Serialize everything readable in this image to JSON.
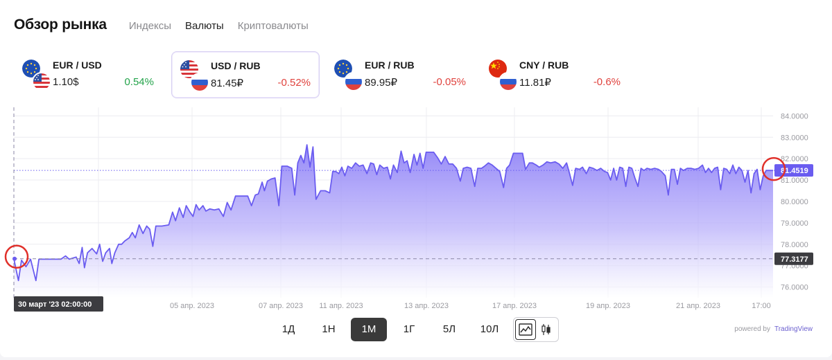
{
  "header": {
    "title": "Обзор рынка",
    "tabs": [
      {
        "label": "Индексы",
        "active": false
      },
      {
        "label": "Валюты",
        "active": true
      },
      {
        "label": "Криптовалюты",
        "active": false
      }
    ]
  },
  "tickers": [
    {
      "pair": "EUR / USD",
      "price": "1.10$",
      "change": "0.54%",
      "direction": "up",
      "flag1": "eu-flag-icon",
      "flag2": "us-flag-icon",
      "selected": false
    },
    {
      "pair": "USD / RUB",
      "price": "81.45₽",
      "change": "-0.52%",
      "direction": "down",
      "flag1": "us-flag-icon",
      "flag2": "ru-flag-icon",
      "selected": true
    },
    {
      "pair": "EUR / RUB",
      "price": "89.95₽",
      "change": "-0.05%",
      "direction": "down",
      "flag1": "eu-flag-icon",
      "flag2": "ru-flag-icon",
      "selected": false
    },
    {
      "pair": "CNY / RUB",
      "price": "11.81₽",
      "change": "-0.6%",
      "direction": "down",
      "flag1": "cn-flag-icon",
      "flag2": "ru-flag-icon",
      "selected": false
    }
  ],
  "periods": [
    {
      "label": "1Д",
      "active": false
    },
    {
      "label": "1Н",
      "active": false
    },
    {
      "label": "1М",
      "active": true
    },
    {
      "label": "1Г",
      "active": false
    },
    {
      "label": "5Л",
      "active": false
    },
    {
      "label": "10Л",
      "active": false
    }
  ],
  "view_toggle": {
    "options": [
      "area-chart-icon",
      "candlestick-icon"
    ],
    "active": "area-chart-icon"
  },
  "powered": {
    "prefix": "powered by",
    "brand": "TradingView"
  },
  "colors": {
    "accent": "#6a5cf0",
    "up": "#23a34a",
    "down": "#e0423d",
    "crosshair_label_bg": "#3c3c40",
    "highlight_circle": "#e0302a"
  },
  "chart_data": {
    "type": "area",
    "title": "",
    "series_name": "",
    "ylim": [
      75.5,
      84.4
    ],
    "yticks": [
      "84.0000",
      "83.0000",
      "82.0000",
      "81.0000",
      "80.0000",
      "79.0000",
      "78.0000",
      "77.0000",
      "76.0000"
    ],
    "xtick_labels": [
      "2023",
      "05 апр. 2023",
      "07 апр. 2023",
      "11 апр. 2023",
      "13 апр. 2023",
      "17 апр. 2023",
      "19 апр. 2023",
      "21 апр. 2023",
      "17:00"
    ],
    "last_value_label": "81.4519",
    "crosshair_value_label": "77.3177",
    "crosshair_time_label": "30 март '23   02:00:00",
    "points": [
      [
        0,
        77.32
      ],
      [
        0.3,
        76.8
      ],
      [
        0.6,
        76.3
      ],
      [
        1.0,
        77.25
      ],
      [
        1.6,
        76.95
      ],
      [
        2.2,
        77.3
      ],
      [
        2.9,
        76.3
      ],
      [
        3.3,
        77.3
      ],
      [
        5.0,
        77.3
      ],
      [
        6.2,
        77.3
      ],
      [
        6.8,
        77.45
      ],
      [
        7.3,
        77.3
      ],
      [
        8.2,
        77.4
      ],
      [
        8.6,
        77.1
      ],
      [
        9.0,
        77.85
      ],
      [
        9.3,
        76.9
      ],
      [
        9.7,
        77.6
      ],
      [
        10.3,
        77.8
      ],
      [
        10.9,
        77.55
      ],
      [
        11.3,
        78.0
      ],
      [
        11.7,
        77.2
      ],
      [
        12.1,
        77.6
      ],
      [
        12.6,
        77.8
      ],
      [
        12.9,
        77.1
      ],
      [
        13.3,
        77.6
      ],
      [
        13.8,
        78.0
      ],
      [
        14.2,
        78.0
      ],
      [
        14.6,
        78.15
      ],
      [
        15.2,
        78.3
      ],
      [
        15.6,
        78.55
      ],
      [
        16.0,
        78.3
      ],
      [
        16.5,
        78.9
      ],
      [
        17.0,
        78.5
      ],
      [
        17.5,
        78.85
      ],
      [
        17.9,
        78.7
      ],
      [
        18.3,
        77.9
      ],
      [
        18.7,
        78.85
      ],
      [
        19.5,
        78.85
      ],
      [
        20.4,
        78.9
      ],
      [
        20.9,
        79.5
      ],
      [
        21.3,
        79.1
      ],
      [
        21.8,
        79.7
      ],
      [
        22.3,
        79.25
      ],
      [
        22.7,
        79.8
      ],
      [
        23.2,
        79.5
      ],
      [
        23.6,
        79.3
      ],
      [
        24.0,
        79.85
      ],
      [
        24.4,
        79.6
      ],
      [
        24.9,
        79.8
      ],
      [
        25.3,
        79.55
      ],
      [
        25.8,
        79.65
      ],
      [
        26.4,
        79.6
      ],
      [
        27.0,
        79.65
      ],
      [
        27.6,
        79.3
      ],
      [
        28.1,
        79.95
      ],
      [
        28.6,
        79.6
      ],
      [
        29.2,
        80.25
      ],
      [
        30.0,
        80.25
      ],
      [
        30.8,
        80.25
      ],
      [
        31.3,
        79.8
      ],
      [
        31.8,
        80.3
      ],
      [
        32.2,
        80.35
      ],
      [
        32.7,
        80.9
      ],
      [
        33.0,
        80.5
      ],
      [
        33.4,
        80.95
      ],
      [
        33.9,
        81.05
      ],
      [
        34.4,
        81.1
      ],
      [
        34.9,
        79.8
      ],
      [
        35.3,
        81.65
      ],
      [
        36.0,
        81.65
      ],
      [
        36.6,
        81.55
      ],
      [
        37.0,
        80.3
      ],
      [
        37.4,
        81.8
      ],
      [
        37.8,
        82.15
      ],
      [
        38.2,
        81.8
      ],
      [
        38.6,
        82.65
      ],
      [
        39.0,
        81.6
      ],
      [
        39.4,
        82.55
      ],
      [
        39.8,
        80.1
      ],
      [
        40.4,
        80.5
      ],
      [
        41.0,
        80.5
      ],
      [
        41.6,
        80.4
      ],
      [
        42.0,
        81.4
      ],
      [
        42.4,
        81.4
      ],
      [
        42.8,
        81.3
      ],
      [
        43.2,
        81.6
      ],
      [
        43.6,
        81.2
      ],
      [
        44.0,
        81.65
      ],
      [
        44.5,
        81.55
      ],
      [
        45.0,
        81.8
      ],
      [
        45.5,
        81.65
      ],
      [
        46.0,
        81.7
      ],
      [
        46.5,
        81.3
      ],
      [
        47.0,
        81.8
      ],
      [
        47.4,
        81.75
      ],
      [
        47.8,
        81.25
      ],
      [
        48.2,
        81.7
      ],
      [
        48.7,
        81.55
      ],
      [
        49.2,
        81.6
      ],
      [
        49.6,
        81.05
      ],
      [
        50.0,
        81.7
      ],
      [
        50.5,
        81.35
      ],
      [
        51.0,
        82.35
      ],
      [
        51.4,
        81.8
      ],
      [
        51.8,
        81.9
      ],
      [
        52.2,
        81.35
      ],
      [
        52.7,
        82.2
      ],
      [
        53.1,
        81.7
      ],
      [
        53.5,
        82.25
      ],
      [
        53.9,
        81.55
      ],
      [
        54.3,
        82.3
      ],
      [
        54.8,
        82.3
      ],
      [
        55.3,
        82.3
      ],
      [
        55.8,
        82.05
      ],
      [
        56.3,
        81.75
      ],
      [
        56.8,
        82.1
      ],
      [
        57.3,
        81.75
      ],
      [
        57.8,
        81.75
      ],
      [
        58.3,
        81.55
      ],
      [
        58.8,
        80.95
      ],
      [
        59.2,
        81.55
      ],
      [
        59.7,
        81.6
      ],
      [
        60.2,
        81.55
      ],
      [
        60.7,
        80.7
      ],
      [
        61.1,
        81.55
      ],
      [
        61.6,
        81.55
      ],
      [
        62.0,
        81.65
      ],
      [
        62.5,
        81.8
      ],
      [
        63.0,
        81.7
      ],
      [
        63.5,
        81.55
      ],
      [
        64.0,
        81.4
      ],
      [
        64.5,
        80.65
      ],
      [
        64.9,
        81.55
      ],
      [
        65.3,
        81.7
      ],
      [
        65.8,
        82.25
      ],
      [
        66.4,
        82.25
      ],
      [
        67.0,
        82.25
      ],
      [
        67.4,
        81.5
      ],
      [
        67.9,
        81.8
      ],
      [
        68.3,
        81.8
      ],
      [
        68.8,
        81.7
      ],
      [
        69.2,
        81.6
      ],
      [
        69.7,
        81.7
      ],
      [
        70.2,
        81.85
      ],
      [
        70.7,
        81.8
      ],
      [
        71.3,
        81.85
      ],
      [
        71.8,
        81.75
      ],
      [
        72.3,
        81.55
      ],
      [
        72.8,
        81.8
      ],
      [
        73.2,
        81.3
      ],
      [
        73.6,
        80.75
      ],
      [
        74.0,
        81.55
      ],
      [
        74.5,
        81.5
      ],
      [
        74.9,
        81.6
      ],
      [
        75.4,
        81.3
      ],
      [
        75.8,
        81.6
      ],
      [
        76.3,
        81.55
      ],
      [
        76.8,
        81.45
      ],
      [
        77.3,
        81.55
      ],
      [
        77.8,
        81.4
      ],
      [
        78.2,
        81.35
      ],
      [
        78.6,
        81.0
      ],
      [
        79.0,
        81.55
      ],
      [
        79.4,
        81.0
      ],
      [
        79.8,
        81.6
      ],
      [
        80.2,
        81.55
      ],
      [
        80.6,
        80.7
      ],
      [
        81.0,
        81.6
      ],
      [
        81.4,
        81.55
      ],
      [
        81.8,
        81.1
      ],
      [
        82.2,
        80.7
      ],
      [
        82.6,
        81.55
      ],
      [
        83.0,
        81.45
      ],
      [
        83.4,
        81.55
      ],
      [
        83.9,
        81.5
      ],
      [
        84.4,
        81.55
      ],
      [
        84.9,
        81.5
      ],
      [
        85.3,
        81.4
      ],
      [
        85.8,
        81.2
      ],
      [
        86.2,
        80.3
      ],
      [
        86.6,
        81.5
      ],
      [
        87.0,
        81.5
      ],
      [
        87.4,
        80.8
      ],
      [
        87.8,
        81.55
      ],
      [
        88.2,
        81.45
      ],
      [
        88.7,
        81.55
      ],
      [
        89.2,
        81.55
      ],
      [
        89.7,
        81.5
      ],
      [
        90.2,
        81.55
      ],
      [
        90.7,
        81.7
      ],
      [
        91.1,
        81.35
      ],
      [
        91.5,
        81.55
      ],
      [
        91.9,
        81.35
      ],
      [
        92.3,
        81.55
      ],
      [
        92.7,
        81.6
      ],
      [
        93.1,
        80.55
      ],
      [
        93.5,
        81.55
      ],
      [
        93.9,
        81.5
      ],
      [
        94.3,
        81.3
      ],
      [
        94.7,
        81.7
      ],
      [
        95.1,
        81.3
      ],
      [
        95.5,
        81.6
      ],
      [
        95.9,
        81.45
      ],
      [
        96.3,
        80.9
      ],
      [
        96.7,
        81.45
      ],
      [
        97.1,
        80.4
      ],
      [
        97.5,
        81.3
      ],
      [
        97.9,
        81.5
      ],
      [
        98.3,
        80.55
      ],
      [
        98.7,
        81.2
      ],
      [
        99.1,
        81.45
      ],
      [
        99.5,
        81.45
      ],
      [
        100,
        81.45
      ]
    ]
  }
}
